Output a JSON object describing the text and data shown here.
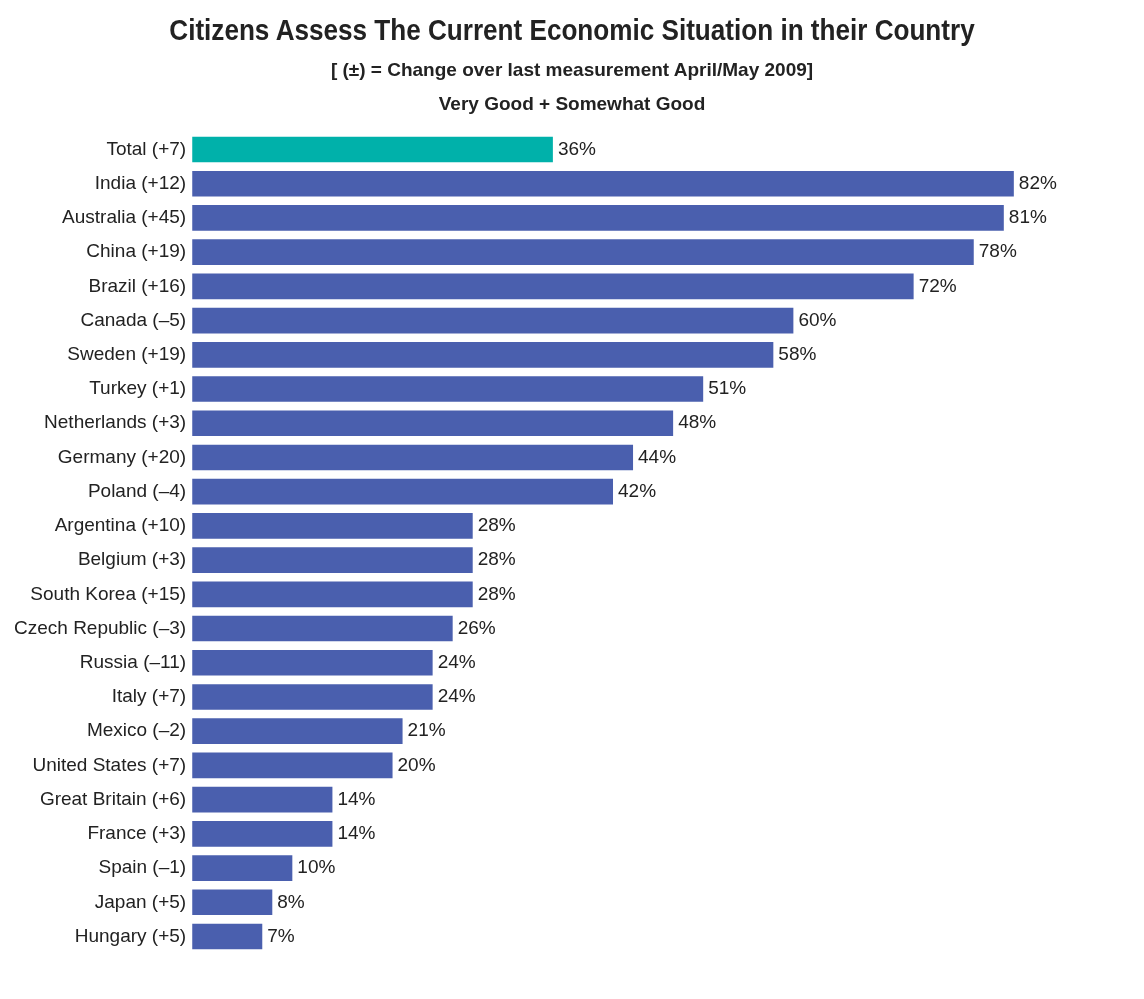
{
  "chart_data": {
    "type": "bar",
    "orientation": "horizontal",
    "title": "Citizens Assess The Current Economic Situation in their Country",
    "subtitle": "[ (±) = Change over last measurement April/May 2009]",
    "annotations": [
      "Very Good + Somewhat Good"
    ],
    "categories": [
      "Total (+7)",
      "India (+12)",
      "Australia (+45)",
      "China (+19)",
      "Brazil (+16)",
      "Canada (–5)",
      "Sweden (+19)",
      "Turkey (+1)",
      "Netherlands (+3)",
      "Germany (+20)",
      "Poland (–4)",
      "Argentina (+10)",
      "Belgium (+3)",
      "South Korea (+15)",
      "Czech Republic (–3)",
      "Russia (–11)",
      "Italy (+7)",
      "Mexico (–2)",
      "United States (+7)",
      "Great Britain (+6)",
      "France (+3)",
      "Spain (–1)",
      "Japan (+5)",
      "Hungary (+5)"
    ],
    "values": [
      36,
      82,
      81,
      78,
      72,
      60,
      58,
      51,
      48,
      44,
      42,
      28,
      28,
      28,
      26,
      24,
      24,
      21,
      20,
      14,
      14,
      10,
      8,
      7
    ],
    "value_labels": [
      "36%",
      "82%",
      "81%",
      "78%",
      "72%",
      "60%",
      "58%",
      "51%",
      "48%",
      "44%",
      "42%",
      "28%",
      "28%",
      "28%",
      "26%",
      "24%",
      "24%",
      "21%",
      "20%",
      "14%",
      "14%",
      "10%",
      "8%",
      "7%"
    ],
    "colors": [
      "#00b1aa",
      "#4a5fae",
      "#4a5fae",
      "#4a5fae",
      "#4a5fae",
      "#4a5fae",
      "#4a5fae",
      "#4a5fae",
      "#4a5fae",
      "#4a5fae",
      "#4a5fae",
      "#4a5fae",
      "#4a5fae",
      "#4a5fae",
      "#4a5fae",
      "#4a5fae",
      "#4a5fae",
      "#4a5fae",
      "#4a5fae",
      "#4a5fae",
      "#4a5fae",
      "#4a5fae",
      "#4a5fae",
      "#4a5fae"
    ],
    "grid": false,
    "legend": false
  }
}
